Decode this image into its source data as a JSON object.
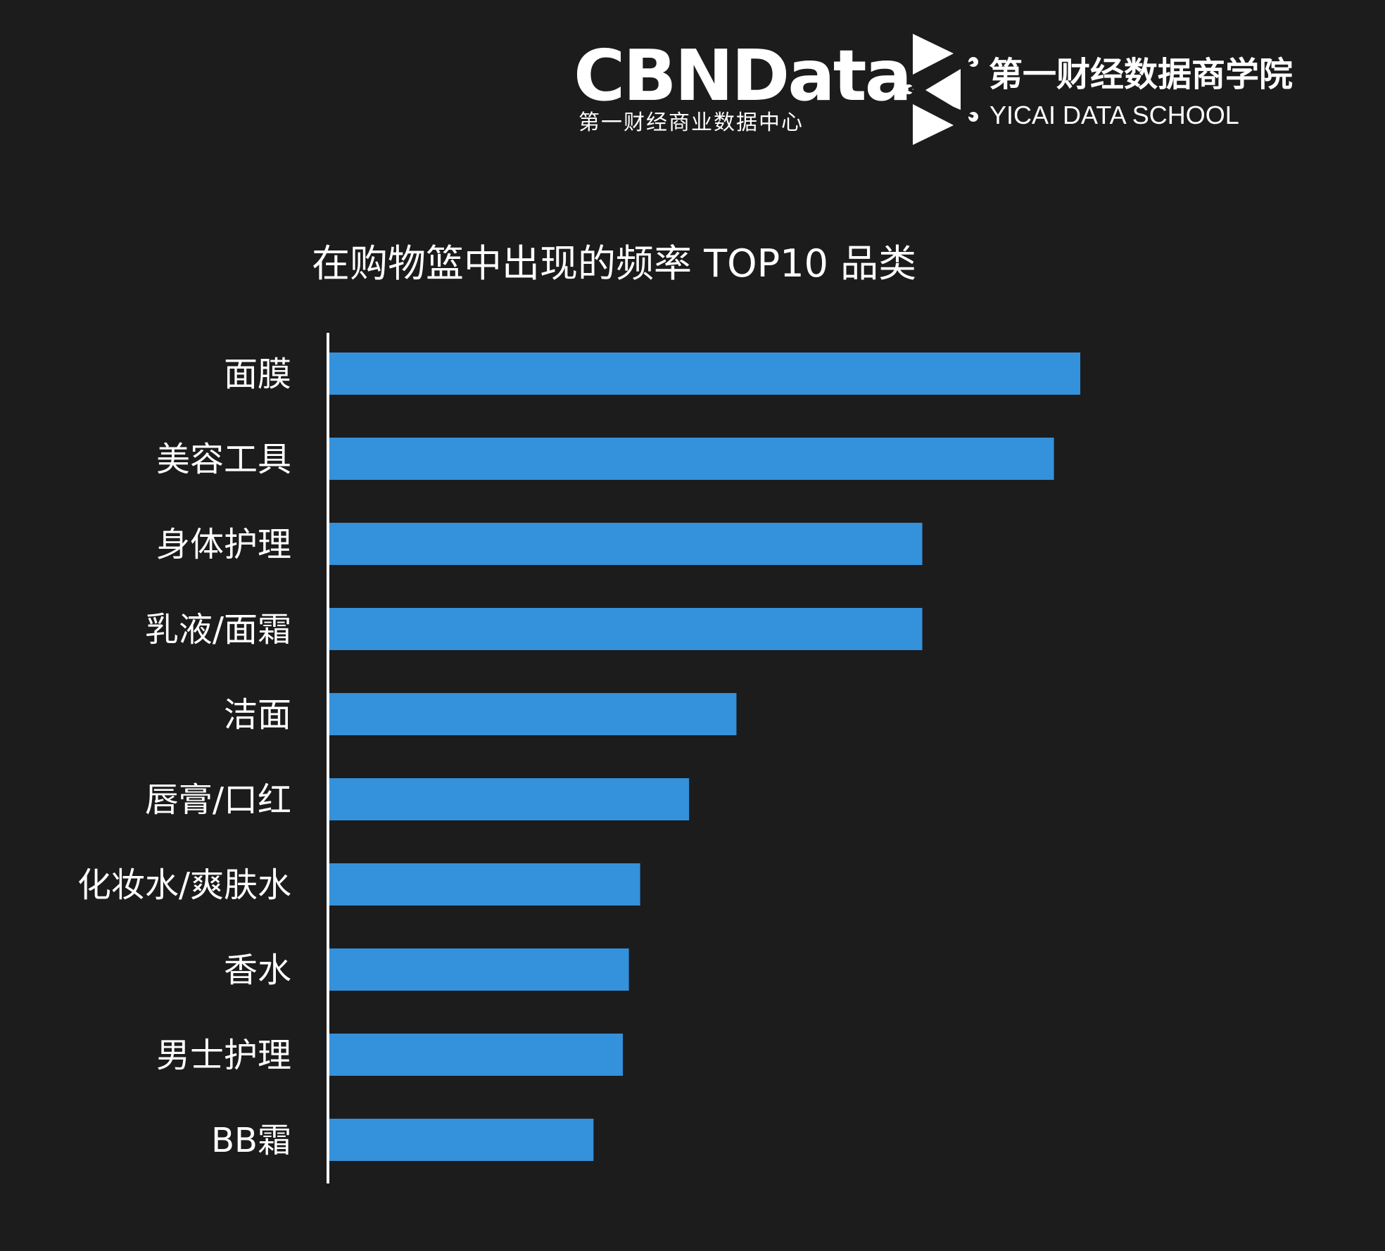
{
  "brand": {
    "cbn_logo": "CBNData",
    "cbn_subtitle": "第一财经商业数据中心",
    "school_name": "第一财经数据商学院",
    "school_name_en": "YICAI DATA SCHOOL"
  },
  "colors": {
    "background": "#1c1c1d",
    "bar": "#3491dc",
    "axis": "#ffffff",
    "text": "#ffffff"
  },
  "chart_data": {
    "type": "bar",
    "orientation": "horizontal",
    "title": "在购物篮中出现的频率 TOP10 品类",
    "categories": [
      "面膜",
      "美容工具",
      "身体护理",
      "乳液/面霜",
      "洁面",
      "唇膏/口红",
      "化妆水/爽肤水",
      "香水",
      "男士护理",
      "BB霜"
    ],
    "values": [
      100,
      96.5,
      79,
      79,
      54.3,
      48,
      41.5,
      40,
      39.2,
      35.3
    ],
    "xlim": [
      0,
      100
    ],
    "grid": false,
    "legend": "none",
    "xlabel": "",
    "ylabel": ""
  }
}
